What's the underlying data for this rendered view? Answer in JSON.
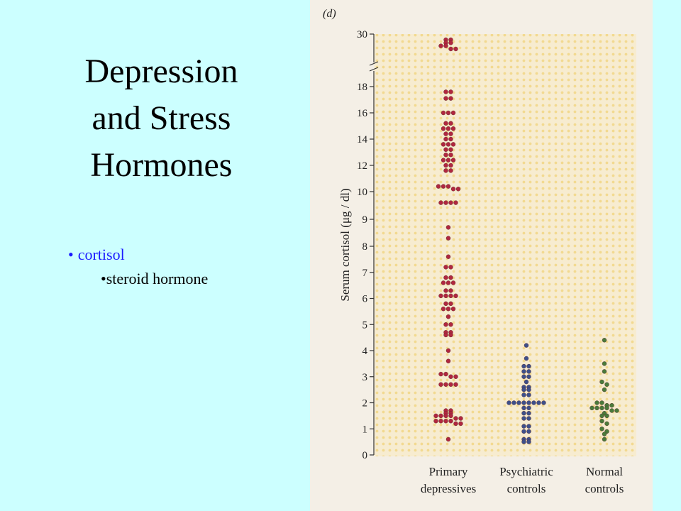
{
  "slide": {
    "title_lines": [
      "Depression",
      "and Stress",
      "Hormones"
    ],
    "bullet_main": "cortisol",
    "bullet_sub": "steroid hormone",
    "bullet_glyph_main": "•",
    "bullet_glyph_sub": "•"
  },
  "colors": {
    "background": "#ccffff",
    "bullet_main": "#1a1aff",
    "primary_dots": "#b0273f",
    "psychiatric_dots": "#3d4f8a",
    "normal_dots": "#4a7a3a"
  },
  "chart_data": {
    "type": "scatter",
    "panel_label": "(d)",
    "ylabel": "Serum cortisol (μg / dl)",
    "yticks": [
      "0",
      "1",
      "2",
      "3",
      "4",
      "5",
      "6",
      "7",
      "8",
      "9",
      "10",
      "12",
      "14",
      "16",
      "18",
      "30"
    ],
    "axis_break": "between 18 and 30",
    "ylim": [
      0,
      30
    ],
    "categories": [
      {
        "line1": "Primary",
        "line2": "depressives"
      },
      {
        "line1": "Psychiatric",
        "line2": "controls"
      },
      {
        "line1": "Normal",
        "line2": "controls"
      }
    ],
    "series": [
      {
        "category": "Primary depressives",
        "values": [
          28.7,
          28.7,
          28.0,
          28.0,
          27.3,
          27.3,
          26.6,
          26.6,
          17.6,
          17.6,
          17.1,
          17.1,
          16.0,
          16.0,
          16.0,
          15.2,
          15.2,
          14.8,
          14.8,
          14.8,
          14.4,
          14.4,
          14.0,
          14.0,
          13.6,
          13.6,
          13.6,
          13.2,
          13.2,
          12.8,
          12.8,
          12.4,
          12.4,
          12.4,
          12.0,
          12.0,
          11.6,
          11.6,
          10.4,
          10.4,
          10.4,
          10.2,
          10.2,
          9.6,
          9.6,
          9.6,
          9.6,
          8.7,
          8.3,
          7.6,
          7.2,
          7.2,
          6.8,
          6.8,
          6.6,
          6.6,
          6.6,
          6.3,
          6.3,
          6.1,
          6.1,
          6.1,
          6.1,
          5.8,
          5.8,
          5.6,
          5.6,
          5.6,
          5.3,
          5.0,
          5.0,
          4.7,
          4.7,
          4.6,
          4.6,
          4.0,
          3.6,
          3.1,
          3.1,
          3.0,
          3.0,
          2.7,
          2.7,
          2.7,
          2.7,
          1.7,
          1.7,
          1.6,
          1.6,
          1.5,
          1.5,
          1.5,
          1.5,
          1.4,
          1.4,
          1.3,
          1.3,
          1.3,
          1.3,
          1.2,
          1.2,
          0.6
        ]
      },
      {
        "category": "Psychiatric controls",
        "values": [
          4.2,
          3.7,
          3.4,
          3.4,
          3.2,
          3.2,
          3.0,
          3.0,
          2.8,
          2.6,
          2.6,
          2.5,
          2.5,
          2.3,
          2.3,
          2.0,
          2.0,
          2.0,
          2.0,
          2.0,
          2.0,
          2.0,
          2.0,
          1.8,
          1.8,
          1.6,
          1.6,
          1.4,
          1.4,
          1.1,
          1.1,
          0.9,
          0.9,
          0.6,
          0.6,
          0.5,
          0.5
        ]
      },
      {
        "category": "Normal controls",
        "values": [
          4.4,
          3.5,
          3.2,
          2.8,
          2.7,
          2.5,
          2.0,
          2.0,
          1.9,
          1.9,
          1.8,
          1.8,
          1.8,
          1.8,
          1.7,
          1.7,
          1.6,
          1.5,
          1.5,
          1.3,
          1.2,
          1.0,
          0.9,
          0.8,
          0.6
        ]
      }
    ]
  }
}
